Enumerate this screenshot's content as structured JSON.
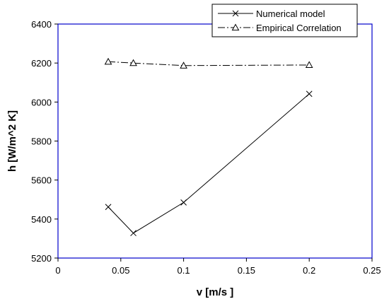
{
  "chart_data": {
    "type": "line",
    "title": "",
    "xlabel": "v [m/s ]",
    "ylabel": "h [W/m^2 K]",
    "xlim": [
      0,
      0.25
    ],
    "ylim": [
      5200,
      6400
    ],
    "x_ticks": [
      0,
      0.05,
      0.1,
      0.15,
      0.2,
      0.25
    ],
    "x_tick_labels": [
      "0",
      "0.05",
      "0.1",
      "0.15",
      "0.2",
      "0.25"
    ],
    "y_ticks": [
      5200,
      5400,
      5600,
      5800,
      6000,
      6200,
      6400
    ],
    "y_tick_labels": [
      "5200",
      "5400",
      "5600",
      "5800",
      "6000",
      "6200",
      "6400"
    ],
    "grid": false,
    "legend_position": "top-right",
    "series": [
      {
        "name": "Numerical model",
        "marker": "x",
        "line_style": "solid",
        "color": "#000000",
        "x": [
          0.04,
          0.06,
          0.1,
          0.2
        ],
        "y": [
          5462,
          5328,
          5485,
          6042
        ]
      },
      {
        "name": "Empirical Correlation",
        "marker": "triangle",
        "line_style": "dash-dot",
        "color": "#000000",
        "x": [
          0.04,
          0.06,
          0.1,
          0.2
        ],
        "y": [
          6207,
          6200,
          6187,
          6190
        ]
      }
    ]
  },
  "colors": {
    "plot_border": "#0000cc",
    "axes": "#000000",
    "background": "#ffffff"
  }
}
